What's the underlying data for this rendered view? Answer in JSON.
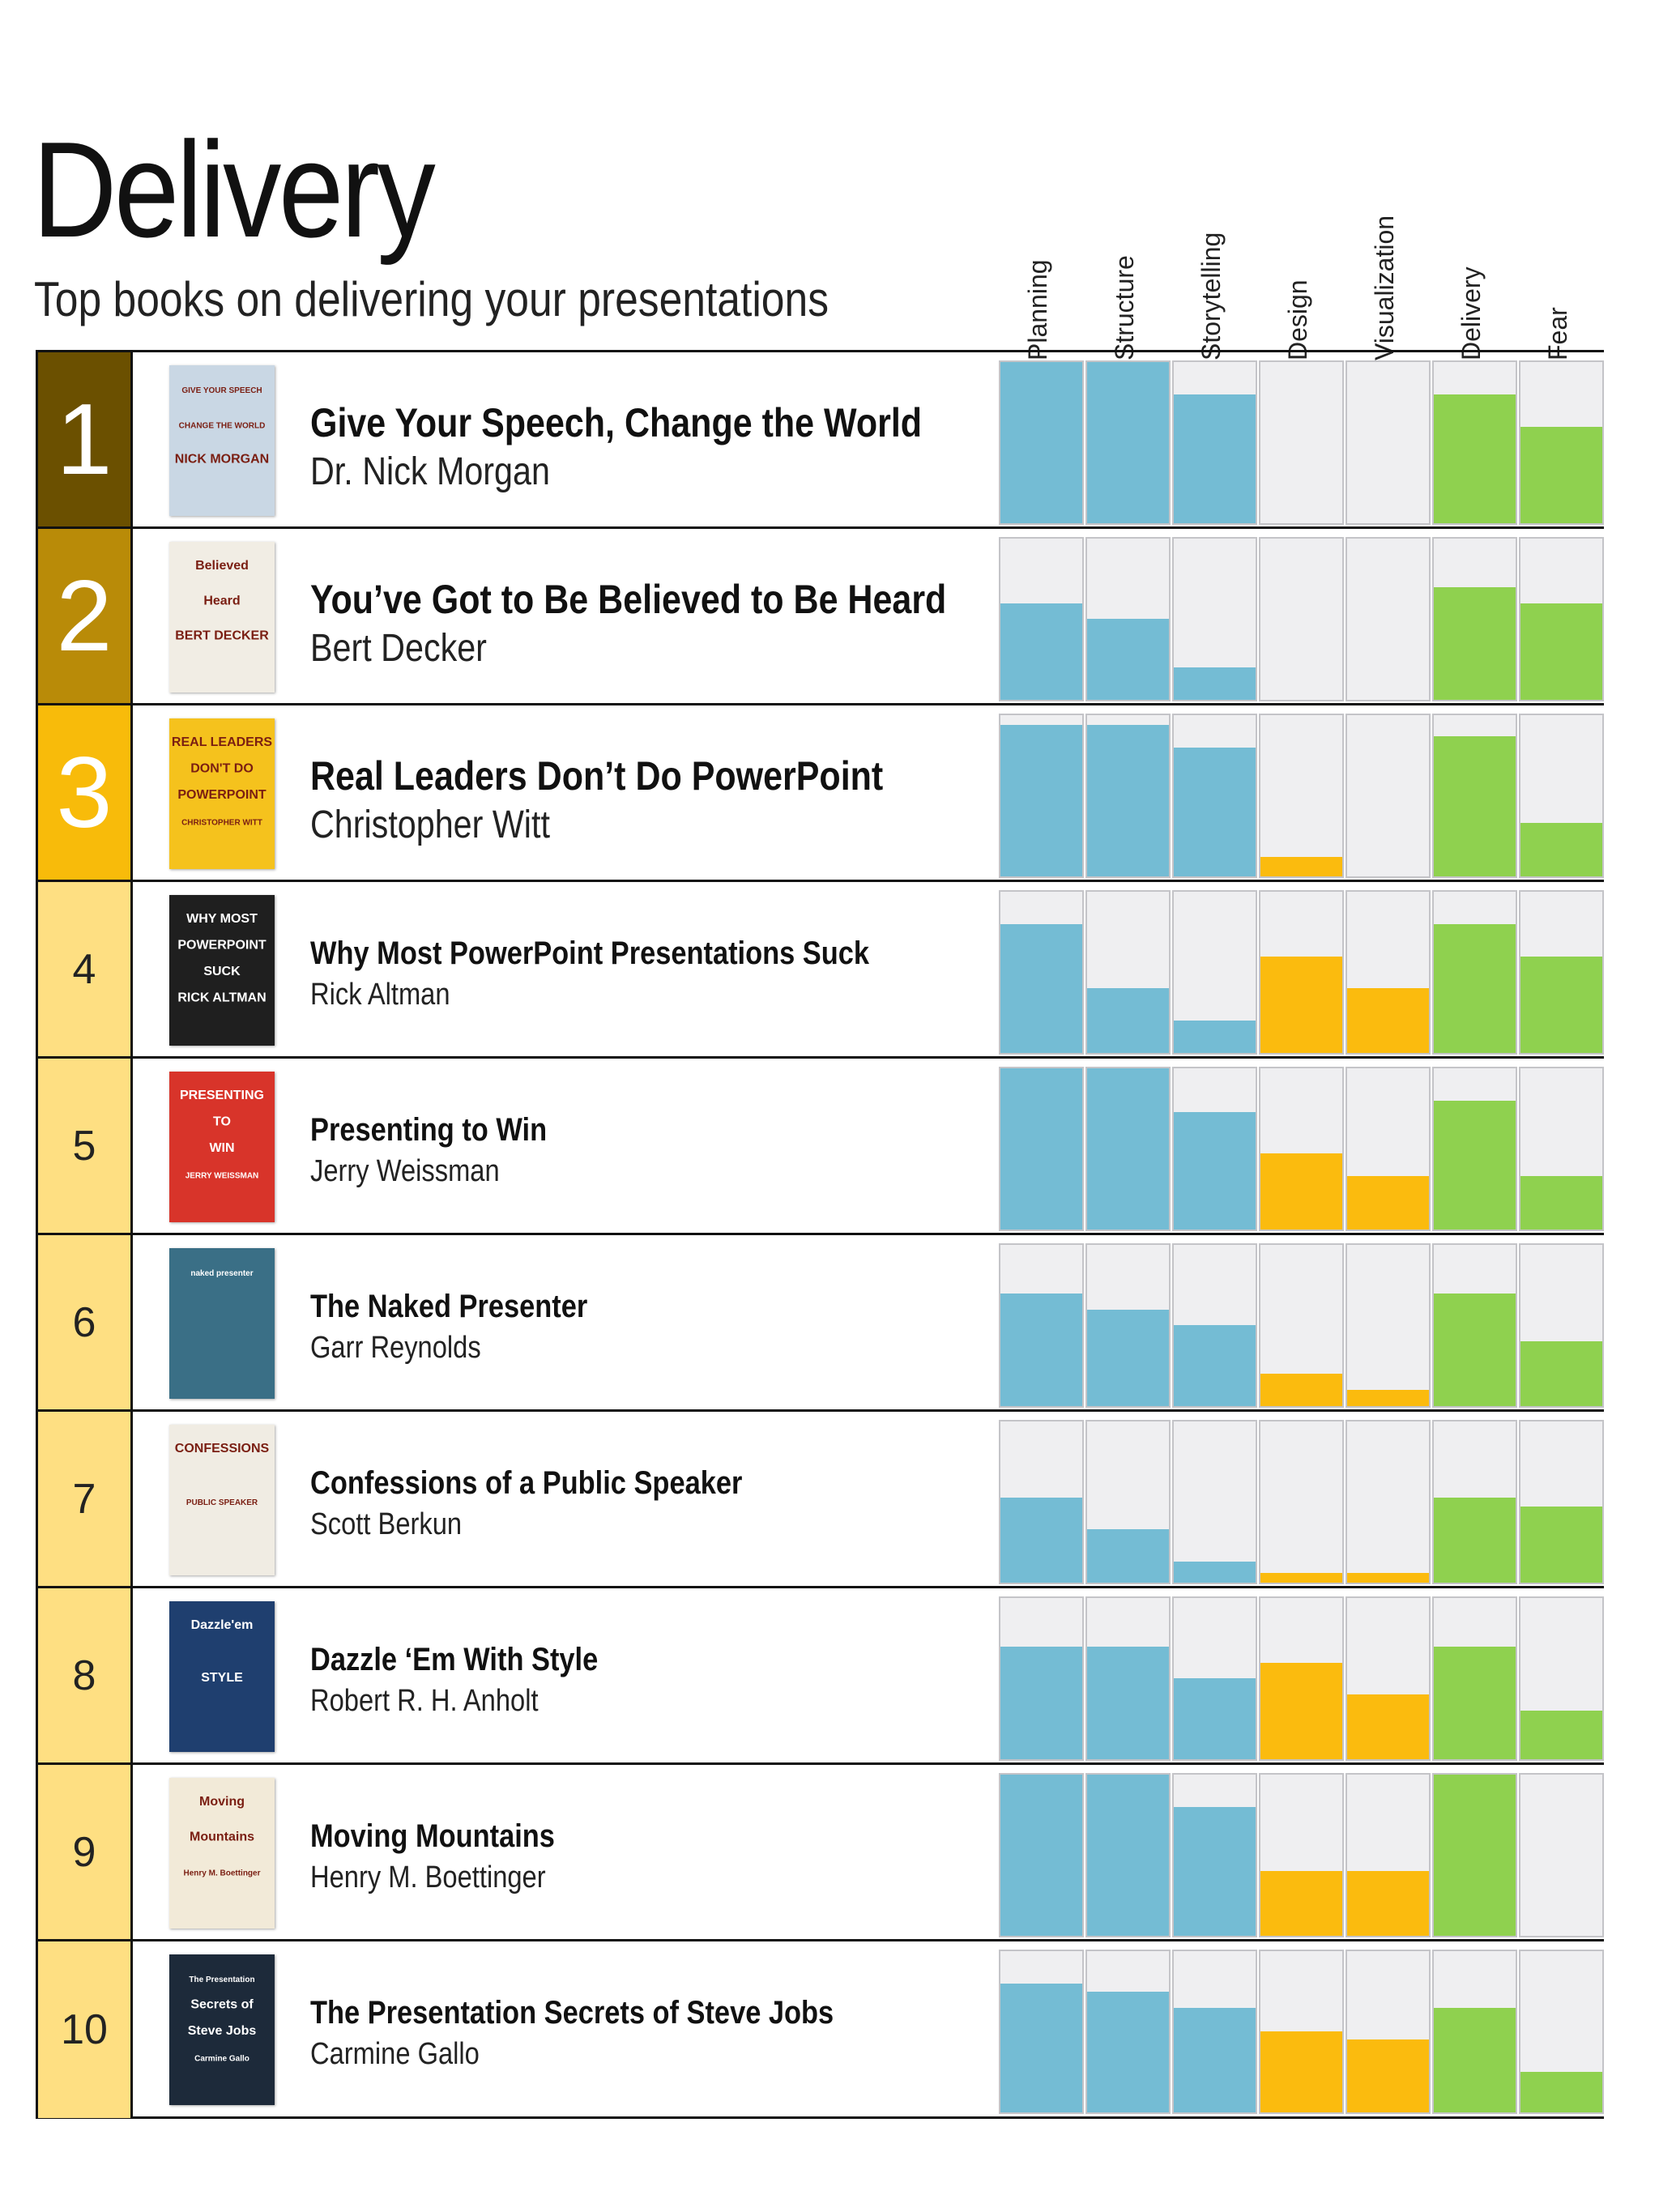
{
  "header": {
    "title": "Delivery",
    "subtitle": "Top books on delivering your presentations"
  },
  "colors": {
    "blue": "#74bcd4",
    "yellow": "#fbbb0e",
    "green": "#8fd14f",
    "empty_cell": "#efeff1",
    "rank_1": "#6b5000",
    "rank_2": "#b98b08",
    "rank_3": "#f8bb0a",
    "rank_rest": "#fedf82"
  },
  "chart_data": {
    "type": "bar",
    "categories": [
      "Planning",
      "Structure",
      "Storytelling",
      "Design",
      "Visualization",
      "Delivery",
      "Fear"
    ],
    "category_colors": [
      "blue",
      "blue",
      "blue",
      "yellow",
      "yellow",
      "green",
      "green"
    ],
    "ylim": [
      0,
      1
    ],
    "rows": [
      {
        "rank": "1",
        "title": "Give Your Speech, Change the World",
        "author": "Dr. Nick Morgan",
        "values": [
          1.0,
          1.0,
          0.8,
          0.0,
          0.0,
          0.8,
          0.6
        ]
      },
      {
        "rank": "2",
        "title": "You’ve Got to Be Believed to Be Heard",
        "author": "Bert Decker",
        "values": [
          0.6,
          0.5,
          0.2,
          0.0,
          0.0,
          0.7,
          0.6
        ]
      },
      {
        "rank": "3",
        "title": "Real Leaders Don’t Do PowerPoint",
        "author": "Christopher Witt",
        "values": [
          0.94,
          0.94,
          0.8,
          0.12,
          0.0,
          0.87,
          0.33
        ]
      },
      {
        "rank": "4",
        "title": "Why Most PowerPoint Presentations Suck",
        "author": "Rick Altman",
        "values": [
          0.8,
          0.4,
          0.2,
          0.6,
          0.4,
          0.8,
          0.6
        ]
      },
      {
        "rank": "5",
        "title": "Presenting to Win",
        "author": "Jerry Weissman",
        "values": [
          1.0,
          1.0,
          0.73,
          0.47,
          0.33,
          0.8,
          0.33
        ]
      },
      {
        "rank": "6",
        "title": "The Naked Presenter",
        "author": "Garr Reynolds",
        "values": [
          0.7,
          0.6,
          0.5,
          0.2,
          0.1,
          0.7,
          0.4
        ]
      },
      {
        "rank": "7",
        "title": "Confessions of a Public Speaker",
        "author": "Scott Berkun",
        "values": [
          0.53,
          0.33,
          0.13,
          0.06,
          0.06,
          0.53,
          0.47
        ]
      },
      {
        "rank": "8",
        "title": "Dazzle ‘Em With Style",
        "author": "Robert R. H. Anholt",
        "values": [
          0.7,
          0.7,
          0.5,
          0.6,
          0.4,
          0.7,
          0.3
        ]
      },
      {
        "rank": "9",
        "title": "Moving Mountains",
        "author": "Henry M. Boettinger",
        "values": [
          1.0,
          1.0,
          0.8,
          0.4,
          0.4,
          1.0,
          0.0
        ]
      },
      {
        "rank": "10",
        "title": "The Presentation Secrets of Steve Jobs",
        "author": "Carmine Gallo",
        "values": [
          0.8,
          0.75,
          0.65,
          0.5,
          0.45,
          0.65,
          0.25
        ]
      }
    ]
  },
  "covers": [
    {
      "color": "#c9d7e4",
      "lines": [
        "GIVE YOUR SPEECH",
        "CHANGE THE WORLD",
        "NICK MORGAN"
      ]
    },
    {
      "color": "#f1ede4",
      "lines": [
        "Believed",
        "Heard",
        "BERT DECKER"
      ]
    },
    {
      "color": "#f5c21d",
      "lines": [
        "REAL LEADERS",
        "DON'T DO",
        "POWERPOINT",
        "CHRISTOPHER WITT"
      ]
    },
    {
      "color": "#1f1f1f",
      "lines": [
        "WHY MOST",
        "POWERPOINT",
        "SUCK",
        "RICK ALTMAN"
      ]
    },
    {
      "color": "#d8342a",
      "lines": [
        "PRESENTING",
        "TO",
        "WIN",
        "JERRY WEISSMAN"
      ]
    },
    {
      "color": "#3a6f86",
      "lines": [
        "naked presenter"
      ]
    },
    {
      "color": "#f0ece3",
      "lines": [
        "CONFESSIONS",
        "PUBLIC SPEAKER"
      ]
    },
    {
      "color": "#1f3f6f",
      "lines": [
        "Dazzle'em",
        "STYLE"
      ]
    },
    {
      "color": "#f2ead8",
      "lines": [
        "Moving",
        "Mountains",
        "Henry M. Boettinger"
      ]
    },
    {
      "color": "#1d2a3a",
      "lines": [
        "The Presentation",
        "Secrets of",
        "Steve Jobs",
        "Carmine Gallo"
      ]
    }
  ]
}
